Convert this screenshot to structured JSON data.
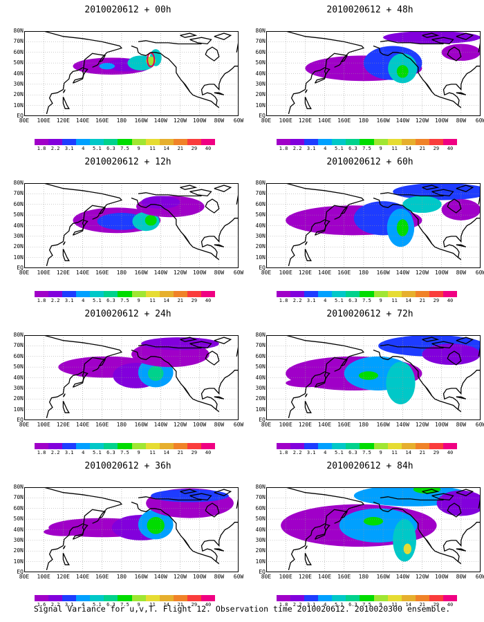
{
  "panels": [
    {
      "title": "2010020612 + 00h"
    },
    {
      "title": "2010020612 + 12h"
    },
    {
      "title": "2010020612 + 24h"
    },
    {
      "title": "2010020612 + 36h"
    },
    {
      "title": "2010020612 + 48h"
    },
    {
      "title": "2010020612 + 60h"
    },
    {
      "title": "2010020612 + 72h"
    },
    {
      "title": "2010020612 + 84h"
    }
  ],
  "lon_labels": [
    "80E",
    "100E",
    "120E",
    "140E",
    "160E",
    "180",
    "160W",
    "140W",
    "120W",
    "100W",
    "80W",
    "60W"
  ],
  "lat_labels": [
    "EQ",
    "10N",
    "20N",
    "30N",
    "40N",
    "50N",
    "60N",
    "70N",
    "80N"
  ],
  "colorbar": {
    "labels": [
      "1.8",
      "2.2",
      "3.1",
      "4",
      "5.1",
      "6.3",
      "7.5",
      "9",
      "11",
      "14",
      "21",
      "29",
      "40"
    ],
    "labels_bottom_left": [
      "1.6",
      "2.2",
      "3.1",
      "4",
      "5.1",
      "6.3",
      "7.5",
      "9",
      "11",
      "14",
      "21",
      "29",
      "40"
    ],
    "colors": [
      "#a000c8",
      "#8200dc",
      "#1e3cff",
      "#00a0ff",
      "#00c8c8",
      "#00d28c",
      "#00dc00",
      "#a0e632",
      "#e6dc32",
      "#e6af2d",
      "#f08228",
      "#fa3c3c",
      "#f00082"
    ]
  },
  "footer": "Signal Variance for u,v,T. Flight 12. Observation time 2010020612. 2010020300 ensemble."
}
